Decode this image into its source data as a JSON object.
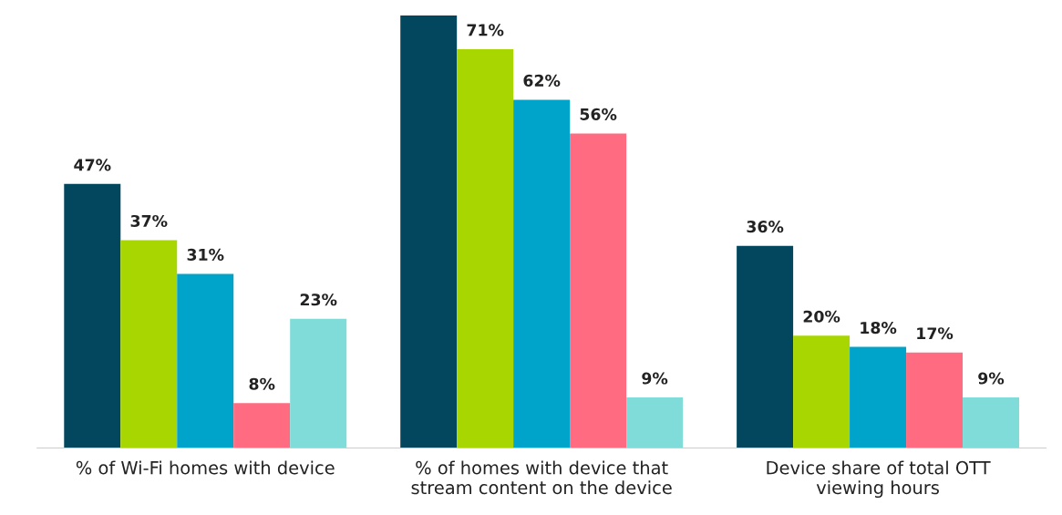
{
  "chart_data": {
    "type": "bar",
    "categories": [
      "% of Wi-Fi homes with device",
      "% of homes with device that\nstream content on the device",
      "Device share of total OTT\nviewing hours"
    ],
    "series": [
      {
        "color": "#02475e",
        "values": [
          47,
          77,
          36
        ],
        "value_labels": [
          "47%",
          null,
          "36%"
        ]
      },
      {
        "color": "#a8d600",
        "values": [
          37,
          71,
          20
        ],
        "value_labels": [
          "37%",
          "71%",
          "20%"
        ]
      },
      {
        "color": "#00a3c9",
        "values": [
          31,
          62,
          18
        ],
        "value_labels": [
          "31%",
          "62%",
          "18%"
        ]
      },
      {
        "color": "#ff6b81",
        "values": [
          8,
          56,
          17
        ],
        "value_labels": [
          "8%",
          "56%",
          "17%"
        ]
      },
      {
        "color": "#7fdcd9",
        "values": [
          23,
          9,
          9
        ],
        "value_labels": [
          "23%",
          "9%",
          "9%"
        ]
      }
    ],
    "grid": false,
    "legend": false,
    "tick_labels": "x"
  }
}
